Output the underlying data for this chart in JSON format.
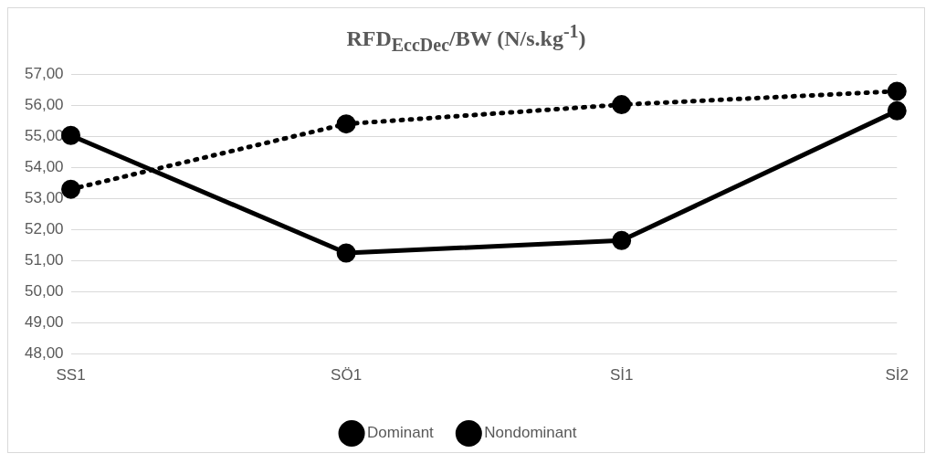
{
  "chart_data": {
    "type": "line",
    "title": "RFD$_{EccDec}$/BW (N/s.kg$^{-1}$)",
    "categories": [
      "SS1",
      "SÖ1",
      "Sİ1",
      "Sİ2"
    ],
    "series": [
      {
        "name": "Dominant",
        "color": "#000000",
        "values": [
          55.03,
          51.25,
          51.65,
          55.82
        ],
        "line_style": "solid"
      },
      {
        "name": "Nondominant",
        "color": "#000000",
        "values": [
          53.3,
          55.4,
          56.02,
          56.45
        ],
        "line_style": "dotted"
      }
    ],
    "ylim": [
      48,
      57
    ],
    "yticks": [
      {
        "value": 48,
        "label": "48,00"
      },
      {
        "value": 49,
        "label": "49,00"
      },
      {
        "value": 50,
        "label": "50,00"
      },
      {
        "value": 51,
        "label": "51,00"
      },
      {
        "value": 52,
        "label": "52,00"
      },
      {
        "value": 53,
        "label": "53,00"
      },
      {
        "value": 54,
        "label": "54,00"
      },
      {
        "value": 55,
        "label": "55,00"
      },
      {
        "value": 56,
        "label": "56,00"
      },
      {
        "value": 57,
        "label": "57,00"
      }
    ],
    "grid": "y",
    "legend": "bottom",
    "marker": "circle"
  }
}
